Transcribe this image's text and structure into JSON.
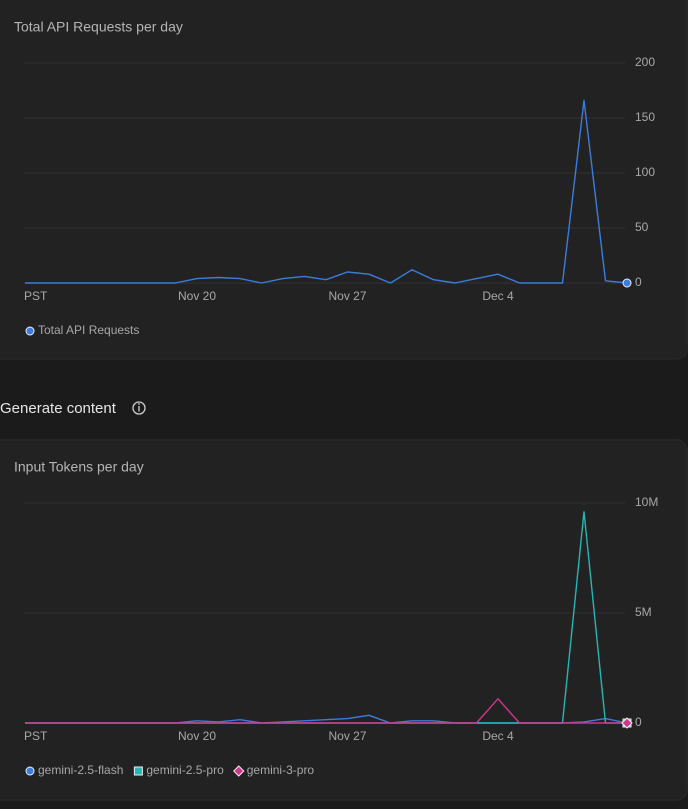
{
  "chart_data": [
    {
      "type": "line",
      "title": "Total API Requests per day",
      "categories": [
        "PST",
        null,
        null,
        null,
        null,
        null,
        null,
        null,
        "Nov 20",
        null,
        null,
        null,
        null,
        null,
        null,
        "Nov 27",
        null,
        null,
        null,
        null,
        null,
        null,
        "Dec 4",
        null,
        null,
        null,
        null,
        null,
        null
      ],
      "series": [
        {
          "name": "Total API Requests",
          "color": "#3b7ddd",
          "marker": "circle",
          "values": [
            0,
            0,
            0,
            0,
            0,
            0,
            0,
            0,
            4,
            5,
            4,
            0,
            4,
            6,
            3,
            10,
            8,
            0,
            12,
            3,
            0,
            4,
            8,
            0,
            0,
            0,
            166,
            2,
            0
          ]
        }
      ],
      "ylim": [
        0,
        200
      ],
      "yticks": [
        0,
        50,
        100,
        150,
        200
      ],
      "grid": true
    },
    {
      "type": "line",
      "title": "Input Tokens per day",
      "categories": [
        "PST",
        null,
        null,
        null,
        null,
        null,
        null,
        null,
        "Nov 20",
        null,
        null,
        null,
        null,
        null,
        null,
        "Nov 27",
        null,
        null,
        null,
        null,
        null,
        null,
        "Dec 4",
        null,
        null,
        null,
        null,
        null,
        null
      ],
      "series": [
        {
          "name": "gemini-2.5-flash",
          "color": "#3b7ddd",
          "marker": "circle",
          "values": [
            0,
            0,
            0,
            0,
            0,
            0,
            0,
            0,
            100000,
            50000,
            150000,
            0,
            50000,
            100000,
            150000,
            200000,
            350000,
            0,
            100000,
            100000,
            0,
            0,
            0,
            0,
            0,
            0,
            50000,
            200000,
            0
          ]
        },
        {
          "name": "gemini-2.5-pro",
          "color": "#27b5b5",
          "marker": "square",
          "values": [
            0,
            0,
            0,
            0,
            0,
            0,
            0,
            0,
            0,
            0,
            0,
            0,
            0,
            0,
            0,
            0,
            0,
            0,
            0,
            0,
            0,
            0,
            0,
            0,
            0,
            0,
            9600000,
            0,
            0
          ]
        },
        {
          "name": "gemini-3-pro",
          "color": "#d0358a",
          "marker": "diamond",
          "values": [
            0,
            0,
            0,
            0,
            0,
            0,
            0,
            0,
            0,
            0,
            0,
            0,
            0,
            0,
            0,
            0,
            0,
            0,
            0,
            0,
            0,
            0,
            1100000,
            0,
            0,
            0,
            0,
            0,
            0
          ]
        }
      ],
      "ylim": [
        0,
        10000000
      ],
      "yticks": [
        0,
        {
          "value": 5000000,
          "label": "5M"
        },
        {
          "value": 10000000,
          "label": "10M"
        }
      ],
      "grid": true
    }
  ],
  "section": {
    "title": "Generate content"
  }
}
